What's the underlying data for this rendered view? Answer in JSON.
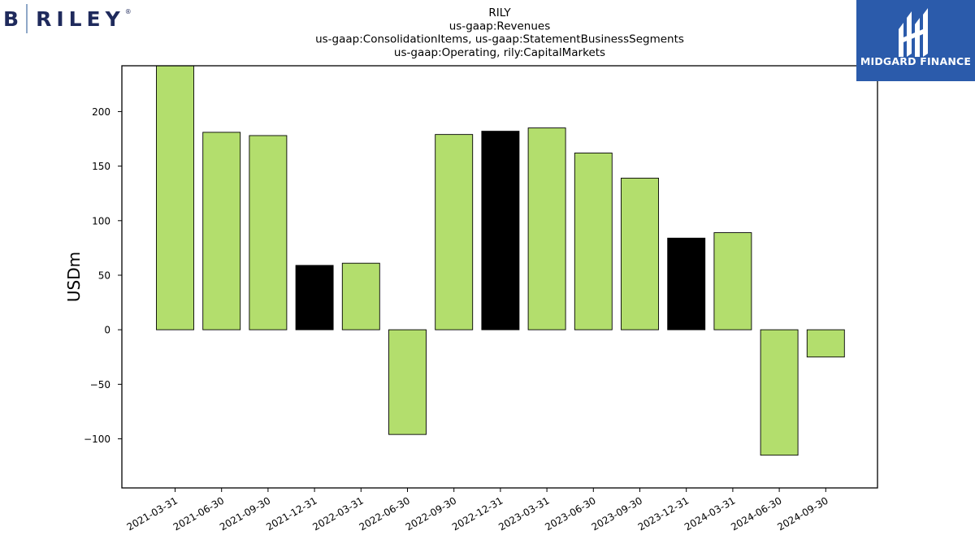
{
  "branding": {
    "left_logo_initial": "B",
    "left_logo_name": "RILEY",
    "left_logo_mark": "®",
    "left_logo_color": "#1f2a5c",
    "right_logo_name": "MIDGARD FINANCE",
    "right_logo_bg": "#2b5bab"
  },
  "chart_data": {
    "type": "bar",
    "title_lines": [
      "RILY",
      "us-gaap:Revenues",
      "us-gaap:ConsolidationItems, us-gaap:StatementBusinessSegments",
      "us-gaap:Operating, rily:CapitalMarkets"
    ],
    "ylabel": "USDm",
    "xlabel": "",
    "ylim": [
      -145,
      242
    ],
    "yticks": [
      -100,
      -50,
      0,
      50,
      100,
      150,
      200
    ],
    "ytick_labels": [
      "−100",
      "−50",
      "0",
      "50",
      "100",
      "150",
      "200"
    ],
    "grid": false,
    "categories": [
      "2021-03-31",
      "2021-06-30",
      "2021-09-30",
      "2021-12-31",
      "2022-03-31",
      "2022-06-30",
      "2022-09-30",
      "2022-12-31",
      "2023-03-31",
      "2023-06-30",
      "2023-09-30",
      "2023-12-31",
      "2024-03-31",
      "2024-06-30",
      "2024-09-30"
    ],
    "values": [
      242,
      181,
      178,
      59,
      61,
      -96,
      179,
      182,
      185,
      162,
      139,
      84,
      89,
      -115,
      -25
    ],
    "bar_colors": [
      "#b3de6d",
      "#b3de6d",
      "#b3de6d",
      "#000000",
      "#b3de6d",
      "#b3de6d",
      "#b3de6d",
      "#000000",
      "#b3de6d",
      "#b3de6d",
      "#b3de6d",
      "#000000",
      "#b3de6d",
      "#b3de6d",
      "#b3de6d"
    ]
  }
}
